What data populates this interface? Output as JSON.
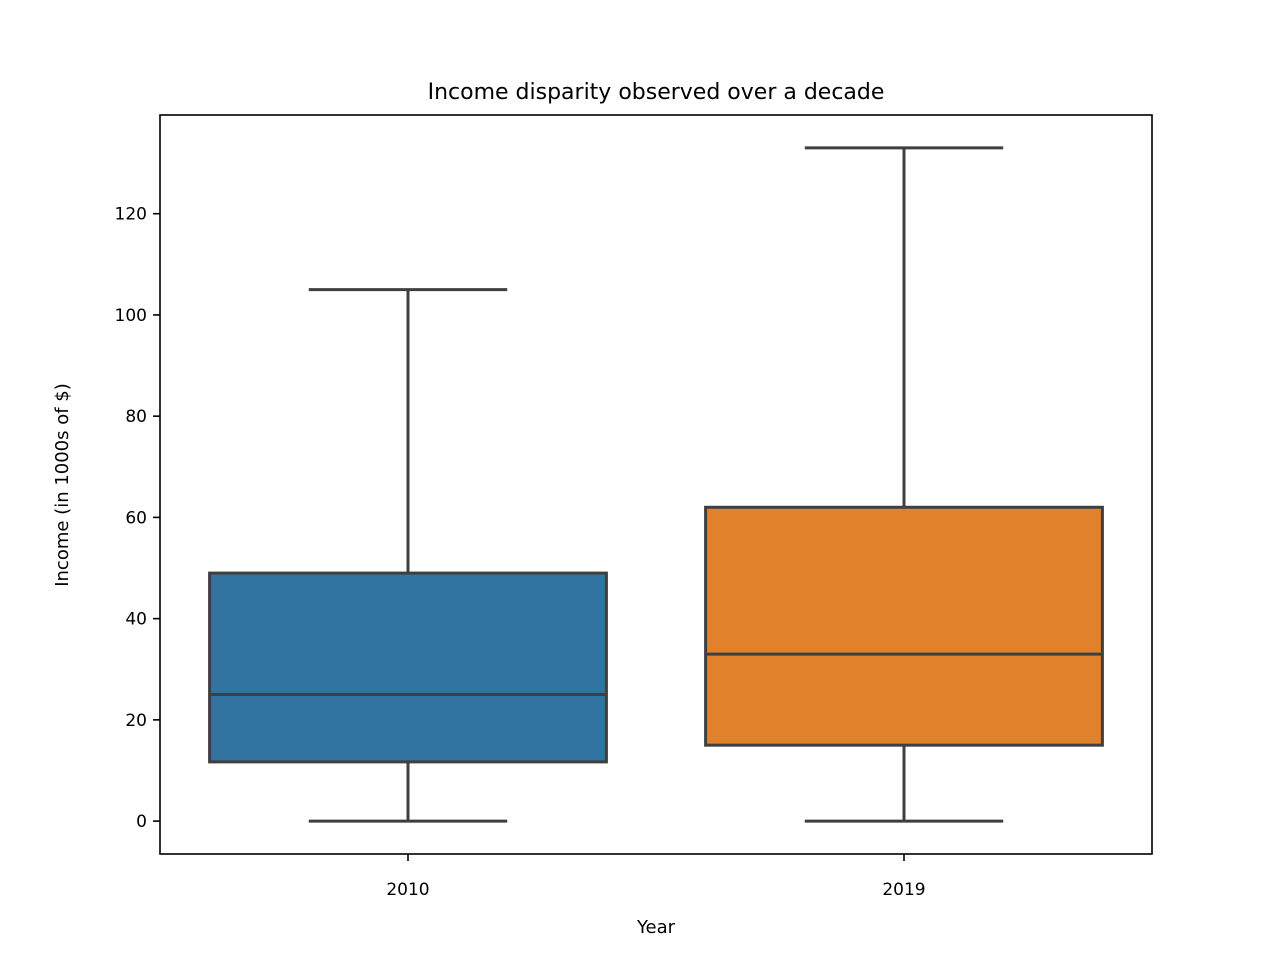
{
  "chart_data": {
    "type": "box",
    "title": "Income disparity observed over a decade",
    "xlabel": "Year",
    "ylabel": "Income (in 1000s of $)",
    "categories": [
      "2010",
      "2019"
    ],
    "boxes": [
      {
        "category": "2010",
        "whisker_low": 0,
        "q1": 11.7,
        "median": 25,
        "q3": 49,
        "whisker_high": 105,
        "color": "#3274a1"
      },
      {
        "category": "2019",
        "whisker_low": 0,
        "q1": 15,
        "median": 33,
        "q3": 62,
        "whisker_high": 133,
        "color": "#e1812c"
      }
    ],
    "ylim": [
      -6.5,
      139.5
    ],
    "yticks": [
      0,
      20,
      40,
      60,
      80,
      100,
      120
    ],
    "grid": false,
    "line_color": "#3f3f3f"
  }
}
